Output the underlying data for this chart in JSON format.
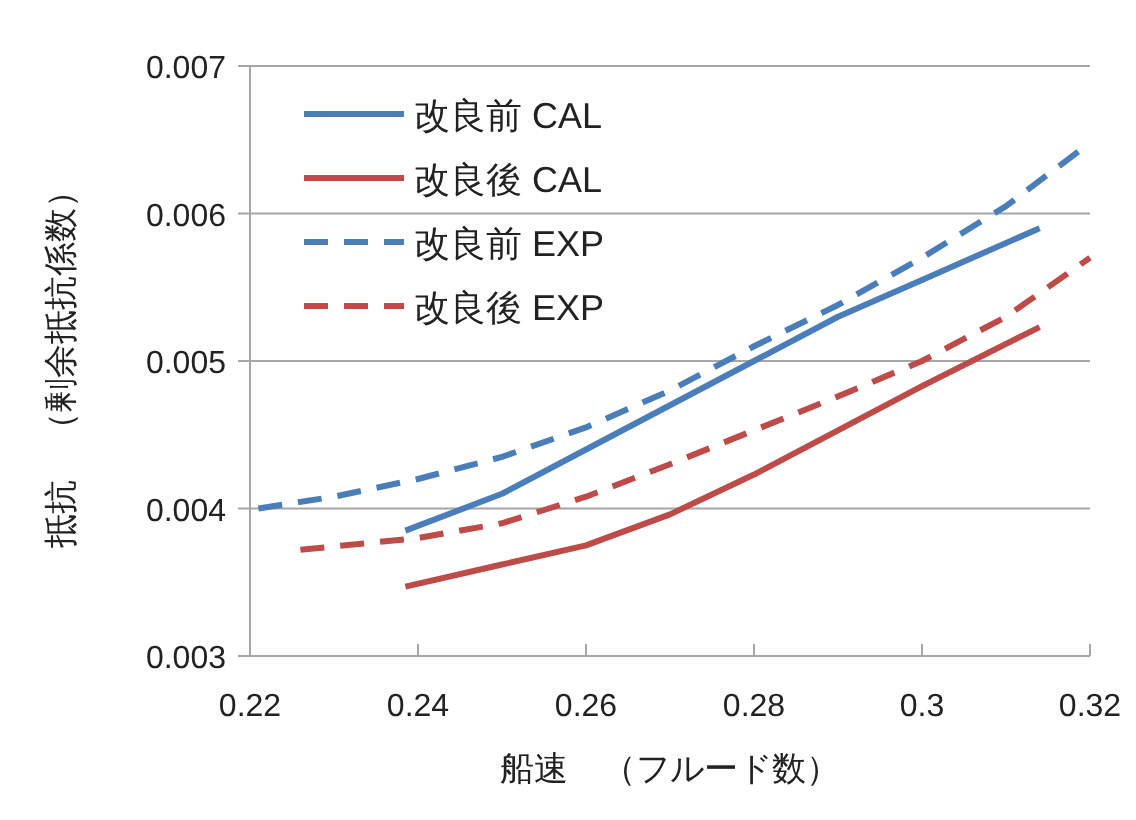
{
  "chart_data": {
    "type": "line",
    "xlabel": "船速　（フルード数）",
    "ylabel": "抵抗　（剰余抵抗係数）",
    "xlim": [
      0.22,
      0.32
    ],
    "xticks": [
      0.22,
      0.24,
      0.26,
      0.28,
      {
        "value": 0.3,
        "label": "0.3"
      },
      0.32
    ],
    "ylim": [
      0.003,
      0.007
    ],
    "yticks": [
      0.003,
      0.004,
      0.005,
      0.006,
      0.007
    ],
    "grid": "y",
    "legend": "top left",
    "marker": "none",
    "series": [
      {
        "name": "改良前 CAL",
        "color": "#4a7ebb",
        "line_style": "solid",
        "x": [
          0.2385,
          0.25,
          0.26,
          0.27,
          0.28,
          0.29,
          0.3,
          0.314
        ],
        "values": [
          0.00385,
          0.0041,
          0.0044,
          0.0047,
          0.005,
          0.0053,
          0.00555,
          0.0059
        ]
      },
      {
        "name": "改良後 CAL",
        "color": "#be4b48",
        "line_style": "solid",
        "x": [
          0.2385,
          0.25,
          0.26,
          0.27,
          0.28,
          0.29,
          0.3,
          0.314
        ],
        "values": [
          0.00347,
          0.00362,
          0.00375,
          0.00396,
          0.00423,
          0.00453,
          0.00483,
          0.00523
        ]
      },
      {
        "name": "改良前 EXP",
        "color": "#4a7ebb",
        "line_style": "dashed",
        "x": [
          0.221,
          0.23,
          0.24,
          0.25,
          0.26,
          0.27,
          0.28,
          0.29,
          0.3,
          0.31,
          0.32
        ],
        "values": [
          0.004,
          0.00408,
          0.0042,
          0.00435,
          0.00455,
          0.0048,
          0.0051,
          0.00538,
          0.0057,
          0.00605,
          0.00648
        ]
      },
      {
        "name": "改良後 EXP",
        "color": "#be4b48",
        "line_style": "dashed",
        "x": [
          0.226,
          0.24,
          0.25,
          0.26,
          0.27,
          0.28,
          0.29,
          0.3,
          0.31,
          0.32
        ],
        "values": [
          0.00372,
          0.0038,
          0.0039,
          0.00408,
          0.0043,
          0.00453,
          0.00476,
          0.005,
          0.0053,
          0.0057
        ]
      }
    ]
  }
}
